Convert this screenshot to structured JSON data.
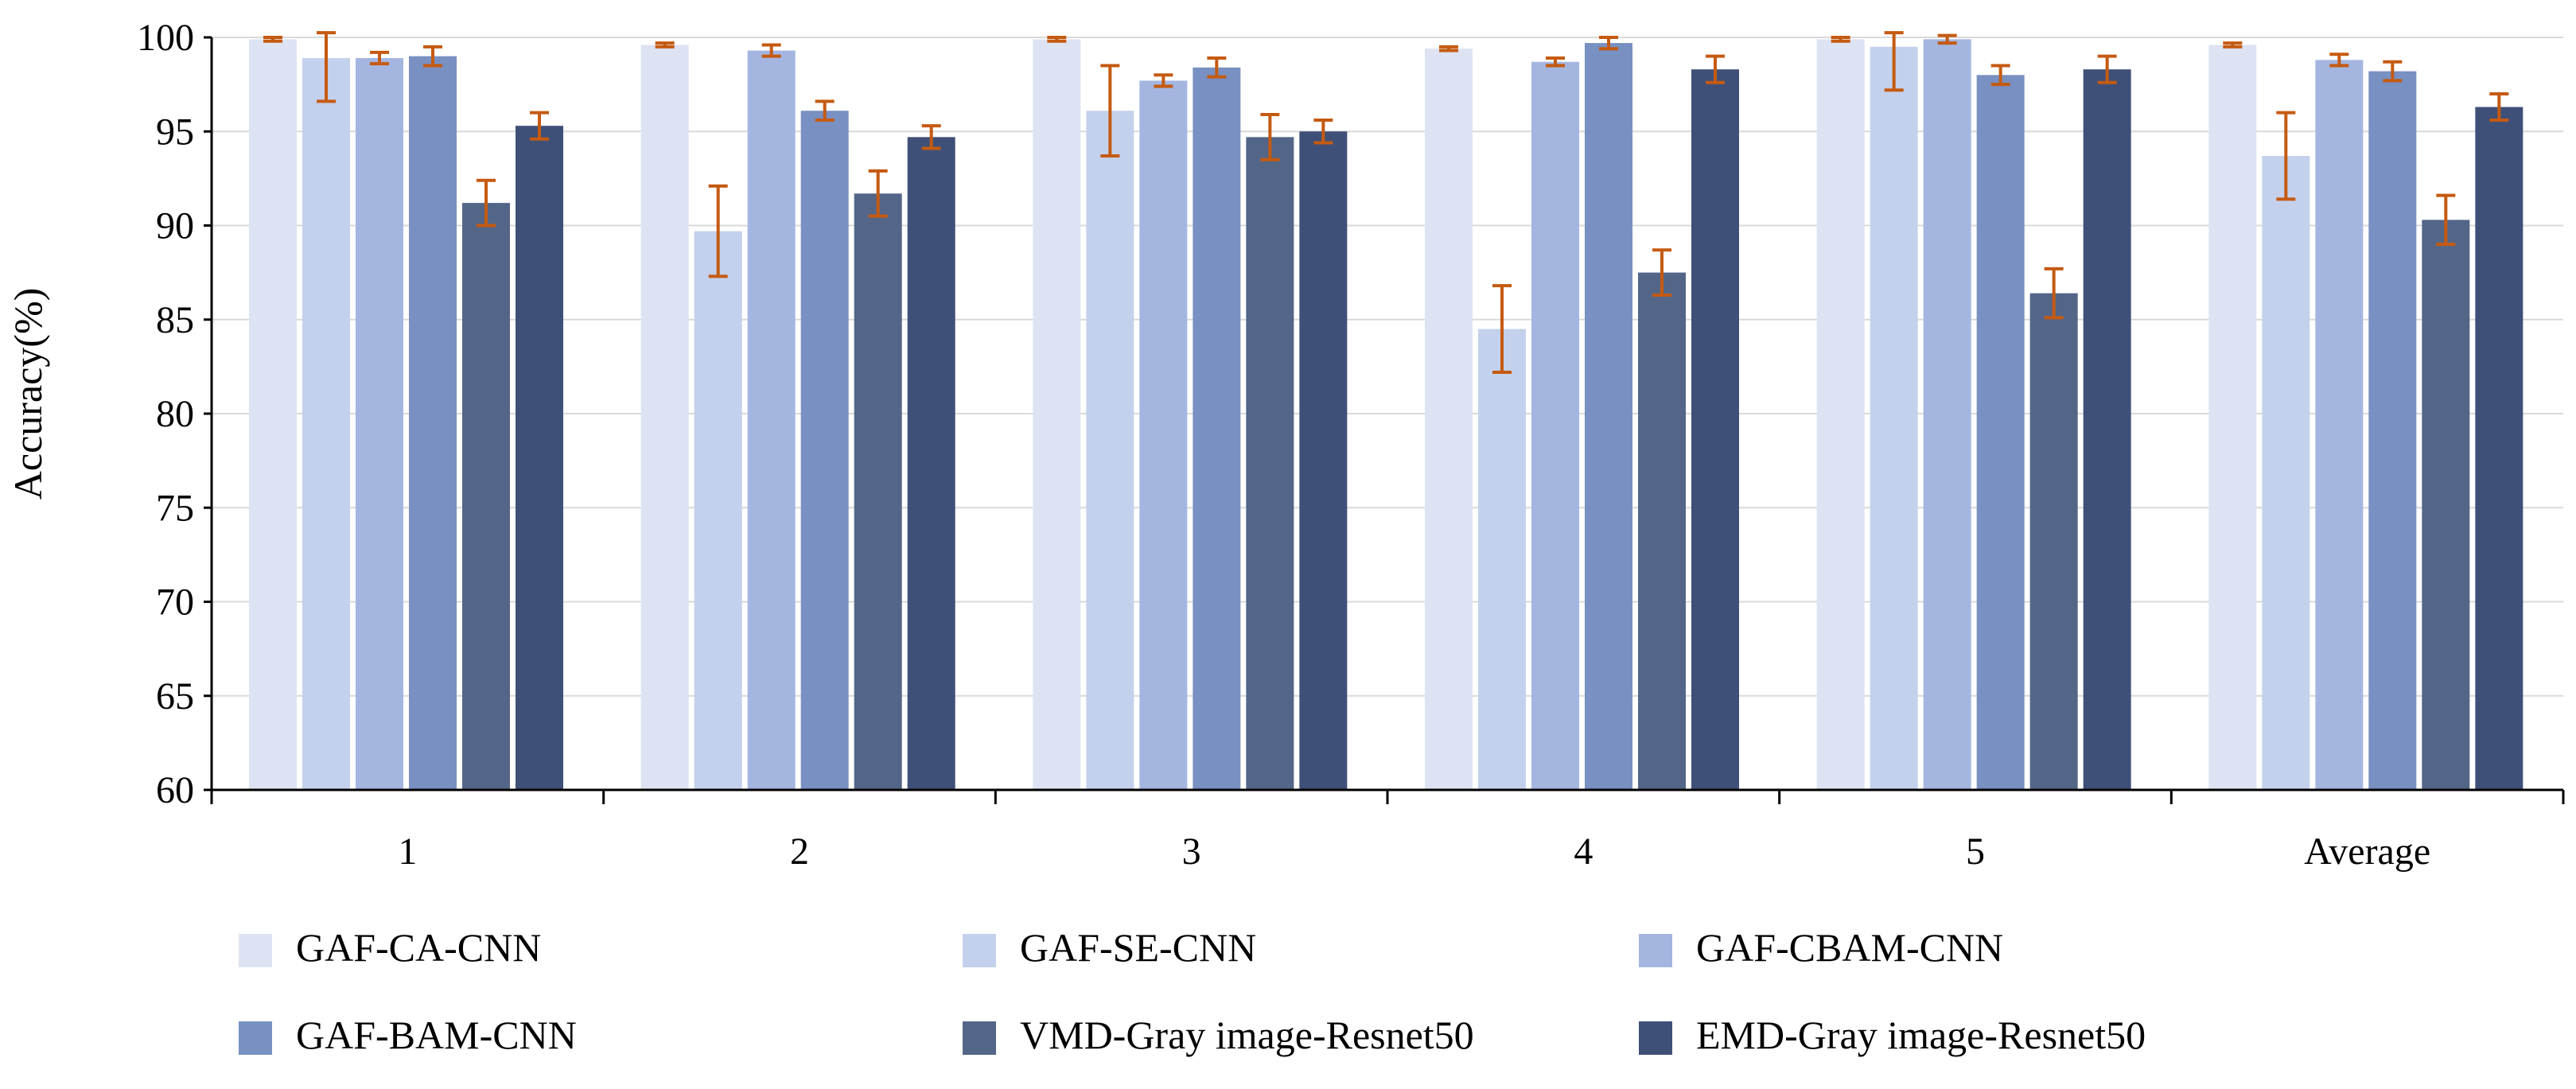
{
  "chart_data": {
    "type": "bar",
    "title": "",
    "xlabel": "",
    "ylabel": "Accuracy(%)",
    "ylim": [
      60,
      100
    ],
    "yticks": [
      60,
      65,
      70,
      75,
      80,
      85,
      90,
      95,
      100
    ],
    "grid": true,
    "legend_position": "bottom",
    "categories": [
      "1",
      "2",
      "3",
      "4",
      "5",
      "Average"
    ],
    "series": [
      {
        "name": "GAF-CA-CNN",
        "color": "#dde3f2",
        "values": [
          99.9,
          99.6,
          99.9,
          99.4,
          99.9,
          99.6
        ],
        "errors": [
          0.1,
          0.1,
          0.1,
          0.1,
          0.1,
          0.1
        ]
      },
      {
        "name": "GAF-SE-CNN",
        "color": "#c4d1ec",
        "values": [
          98.9,
          89.7,
          96.1,
          84.5,
          99.5,
          93.7
        ],
        "errors": [
          2.3,
          2.4,
          2.4,
          2.3,
          2.3,
          2.3
        ]
      },
      {
        "name": "GAF-CBAM-CNN",
        "color": "#a4b6e0",
        "values": [
          98.9,
          99.3,
          97.7,
          98.7,
          99.9,
          98.8
        ],
        "errors": [
          0.3,
          0.3,
          0.3,
          0.2,
          0.2,
          0.3
        ]
      },
      {
        "name": "GAF-BAM-CNN",
        "color": "#7890c2",
        "values": [
          99.0,
          96.1,
          98.4,
          99.7,
          98.0,
          98.2
        ],
        "errors": [
          0.5,
          0.5,
          0.5,
          0.3,
          0.5,
          0.5
        ]
      },
      {
        "name": "VMD-Gray image-Resnet50",
        "color": "#536688",
        "values": [
          91.2,
          91.7,
          94.7,
          87.5,
          86.4,
          90.3
        ],
        "errors": [
          1.2,
          1.2,
          1.2,
          1.2,
          1.3,
          1.3
        ]
      },
      {
        "name": "EMD-Gray image-Resnet50",
        "color": "#3f5078",
        "values": [
          95.3,
          94.7,
          95.0,
          98.3,
          98.3,
          96.3
        ],
        "errors": [
          0.7,
          0.6,
          0.6,
          0.7,
          0.7,
          0.7
        ]
      }
    ],
    "error_bar_color": "#c55a11"
  }
}
